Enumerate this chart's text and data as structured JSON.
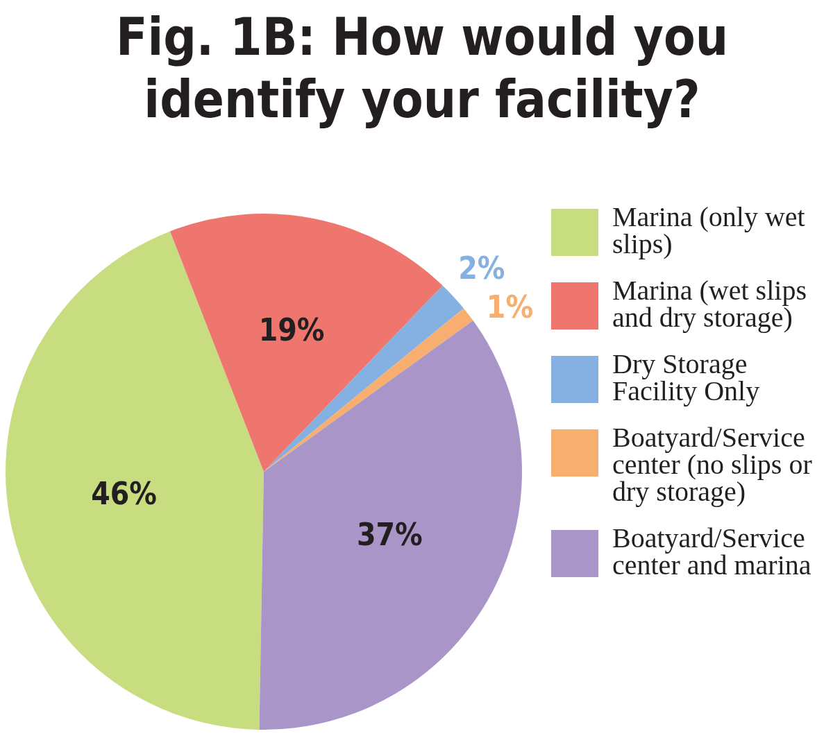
{
  "chart_data": {
    "type": "pie",
    "title": "Fig. 1B: How would you identify your facility?",
    "categories": [
      "Marina (only wet slips)",
      "Marina (wet slips and dry storage)",
      "Dry Storage Facility Only",
      "Boatyard/Service center (no slips or dry storage)",
      "Boatyard/Service center and marina"
    ],
    "values": [
      46,
      19,
      2,
      1,
      37
    ],
    "colors": [
      "#c8dd80",
      "#ee766f",
      "#84b1e1",
      "#f7ae6f",
      "#a995c7"
    ],
    "value_labels": [
      "46%",
      "19%",
      "2%",
      "1%",
      "37%"
    ],
    "legend": "right"
  }
}
